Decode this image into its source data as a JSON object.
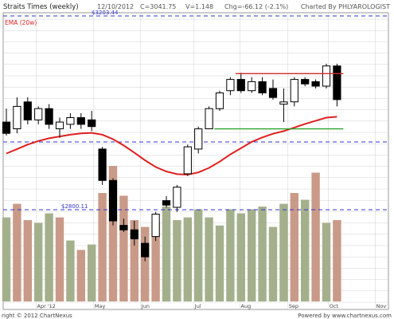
{
  "header": {
    "title": "Straits Times (weekly)",
    "date": "12/10/2012",
    "close": "C=3041.75",
    "volume": "V=1.148",
    "change": "Chg=-66.12 (-2.1%)",
    "credit": "Charted By PHLYAROLOGIST"
  },
  "footer": {
    "copyright": "right © 2012 ChartNexus",
    "powered": "Powered by www.chartnexus.com"
  },
  "legend": {
    "ema_label": "EMA (20w)"
  },
  "colors": {
    "background": "#ffffff",
    "grid": "#d0d0d0",
    "ema": "#e02020",
    "resistance": "#d42a2a",
    "support": "#2aa52a",
    "guide": "#3333cc",
    "volume_up": "#a4b08c",
    "volume_down": "#c99a88",
    "candle": "#000000"
  },
  "chart_data": {
    "type": "candlestick",
    "title": "Straits Times (weekly)",
    "x_labels": [
      "Apr '12",
      "May",
      "Jun",
      "Jul",
      "Aug",
      "Sep",
      "Oct",
      "Nov"
    ],
    "reference_lines": [
      {
        "label": "$3203.44",
        "value": 3203.44
      },
      {
        "label": "$2800.11",
        "value": 2800.11
      }
    ],
    "price_range": [
      2700,
      3240
    ],
    "candles": [
      {
        "x": 0,
        "open": 3000,
        "high": 3030,
        "low": 2970,
        "close": 2975
      },
      {
        "x": 1,
        "open": 2985,
        "high": 3055,
        "low": 2975,
        "close": 3035
      },
      {
        "x": 2,
        "open": 3045,
        "high": 3055,
        "low": 2995,
        "close": 3005
      },
      {
        "x": 3,
        "open": 3005,
        "high": 3035,
        "low": 2995,
        "close": 3030
      },
      {
        "x": 4,
        "open": 3030,
        "high": 3040,
        "low": 2985,
        "close": 2995
      },
      {
        "x": 5,
        "open": 2985,
        "high": 3010,
        "low": 2965,
        "close": 3000
      },
      {
        "x": 6,
        "open": 2995,
        "high": 3020,
        "low": 2985,
        "close": 3010
      },
      {
        "x": 7,
        "open": 3010,
        "high": 3020,
        "low": 2985,
        "close": 2995
      },
      {
        "x": 8,
        "open": 3005,
        "high": 3025,
        "low": 2980,
        "close": 2990
      },
      {
        "x": 9,
        "open": 2940,
        "high": 2945,
        "low": 2860,
        "close": 2870
      },
      {
        "x": 10,
        "open": 2870,
        "high": 2875,
        "low": 2770,
        "close": 2780
      },
      {
        "x": 11,
        "open": 2770,
        "high": 2785,
        "low": 2755,
        "close": 2760
      },
      {
        "x": 12,
        "open": 2760,
        "high": 2780,
        "low": 2725,
        "close": 2740
      },
      {
        "x": 13,
        "open": 2730,
        "high": 2745,
        "low": 2690,
        "close": 2700
      },
      {
        "x": 14,
        "open": 2745,
        "high": 2800,
        "low": 2735,
        "close": 2795
      },
      {
        "x": 15,
        "open": 2825,
        "high": 2835,
        "low": 2810,
        "close": 2815
      },
      {
        "x": 16,
        "open": 2810,
        "high": 2860,
        "low": 2800,
        "close": 2855
      },
      {
        "x": 17,
        "open": 2885,
        "high": 2950,
        "low": 2880,
        "close": 2945
      },
      {
        "x": 18,
        "open": 2940,
        "high": 2990,
        "low": 2930,
        "close": 2985
      },
      {
        "x": 19,
        "open": 2985,
        "high": 3035,
        "low": 2985,
        "close": 3030
      },
      {
        "x": 20,
        "open": 3030,
        "high": 3070,
        "low": 3025,
        "close": 3065
      },
      {
        "x": 21,
        "open": 3070,
        "high": 3100,
        "low": 3060,
        "close": 3095
      },
      {
        "x": 22,
        "open": 3095,
        "high": 3110,
        "low": 3065,
        "close": 3070
      },
      {
        "x": 23,
        "open": 3070,
        "high": 3100,
        "low": 3065,
        "close": 3090
      },
      {
        "x": 24,
        "open": 3090,
        "high": 3100,
        "low": 3060,
        "close": 3065
      },
      {
        "x": 25,
        "open": 3075,
        "high": 3095,
        "low": 3050,
        "close": 3055
      },
      {
        "x": 26,
        "open": 3040,
        "high": 3075,
        "low": 3000,
        "close": 3045
      },
      {
        "x": 27,
        "open": 3045,
        "high": 3100,
        "low": 3035,
        "close": 3095
      },
      {
        "x": 28,
        "open": 3095,
        "high": 3100,
        "low": 3080,
        "close": 3085
      },
      {
        "x": 29,
        "open": 3090,
        "high": 3095,
        "low": 3075,
        "close": 3080
      },
      {
        "x": 30,
        "open": 3080,
        "high": 3130,
        "low": 3075,
        "close": 3125
      },
      {
        "x": 31,
        "open": 3125,
        "high": 3130,
        "low": 3035,
        "close": 3050
      }
    ],
    "ema_20w": [
      2930,
      2940,
      2950,
      2958,
      2964,
      2968,
      2972,
      2975,
      2976,
      2972,
      2962,
      2948,
      2932,
      2915,
      2900,
      2890,
      2884,
      2883,
      2888,
      2898,
      2912,
      2928,
      2942,
      2956,
      2966,
      2974,
      2980,
      2988,
      2996,
      3003,
      3010,
      3012
    ],
    "volumes": [
      {
        "x": 0,
        "value": 0.62,
        "dir": "up"
      },
      {
        "x": 1,
        "value": 0.72,
        "dir": "down"
      },
      {
        "x": 2,
        "value": 0.6,
        "dir": "down"
      },
      {
        "x": 3,
        "value": 0.58,
        "dir": "up"
      },
      {
        "x": 4,
        "value": 0.65,
        "dir": "up"
      },
      {
        "x": 5,
        "value": 0.62,
        "dir": "down"
      },
      {
        "x": 6,
        "value": 0.45,
        "dir": "up"
      },
      {
        "x": 7,
        "value": 0.38,
        "dir": "down"
      },
      {
        "x": 8,
        "value": 0.42,
        "dir": "up"
      },
      {
        "x": 9,
        "value": 0.8,
        "dir": "down"
      },
      {
        "x": 10,
        "value": 1.0,
        "dir": "down"
      },
      {
        "x": 11,
        "value": 0.78,
        "dir": "down"
      },
      {
        "x": 12,
        "value": 0.6,
        "dir": "down"
      },
      {
        "x": 13,
        "value": 0.55,
        "dir": "down"
      },
      {
        "x": 14,
        "value": 0.58,
        "dir": "down"
      },
      {
        "x": 15,
        "value": 0.7,
        "dir": "up"
      },
      {
        "x": 16,
        "value": 0.6,
        "dir": "up"
      },
      {
        "x": 17,
        "value": 0.62,
        "dir": "up"
      },
      {
        "x": 18,
        "value": 0.68,
        "dir": "up"
      },
      {
        "x": 19,
        "value": 0.62,
        "dir": "up"
      },
      {
        "x": 20,
        "value": 0.56,
        "dir": "up"
      },
      {
        "x": 21,
        "value": 0.68,
        "dir": "up"
      },
      {
        "x": 22,
        "value": 0.65,
        "dir": "up"
      },
      {
        "x": 23,
        "value": 0.68,
        "dir": "up"
      },
      {
        "x": 24,
        "value": 0.7,
        "dir": "up"
      },
      {
        "x": 25,
        "value": 0.55,
        "dir": "up"
      },
      {
        "x": 26,
        "value": 0.72,
        "dir": "up"
      },
      {
        "x": 27,
        "value": 0.8,
        "dir": "down"
      },
      {
        "x": 28,
        "value": 0.75,
        "dir": "up"
      },
      {
        "x": 29,
        "value": 0.95,
        "dir": "down"
      },
      {
        "x": 30,
        "value": 0.58,
        "dir": "up"
      },
      {
        "x": 31,
        "value": 0.6,
        "dir": "down"
      }
    ],
    "annotations": [
      {
        "type": "resistance",
        "value": 3108,
        "from_x": 21.5,
        "to_x": 31.6
      },
      {
        "type": "support",
        "value": 2985,
        "from_x": 19.5,
        "to_x": 31.6
      }
    ]
  }
}
